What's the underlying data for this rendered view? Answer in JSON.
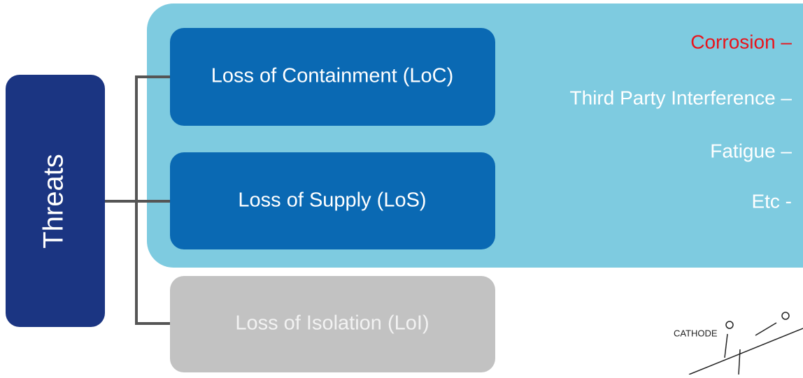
{
  "root": {
    "label": "Threats"
  },
  "nodes": [
    {
      "label": "Loss of Containment (LoC)"
    },
    {
      "label": "Loss of Supply (LoS)"
    },
    {
      "label": "Loss of Isolation (LoI)"
    }
  ],
  "threat_list": [
    "Corrosion –",
    "Third Party Interference –",
    "Fatigue –",
    "Etc -"
  ],
  "image": {
    "label": "CATHODE"
  }
}
